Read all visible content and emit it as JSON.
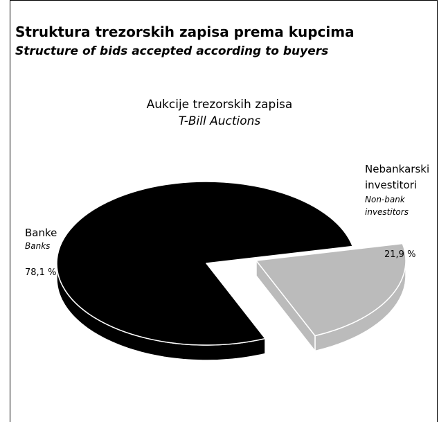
{
  "header": {
    "title": "Struktura trezorskih zapisa prema kupcima",
    "subtitle": "Structure of bids accepted according to buyers"
  },
  "chart_data": {
    "type": "pie",
    "title": "Aukcije trezorskih zapisa",
    "subtitle": "T-Bill Auctions",
    "slices": [
      {
        "label": "Banke",
        "label_en": "Banks",
        "value": 78.1,
        "value_text": "78,1 %",
        "color": "#000000",
        "exploded": false
      },
      {
        "label": "Nebankarski investitori",
        "label_en": "Non-bank investitors",
        "value": 21.9,
        "value_text": "21,9 %",
        "color": "#bbbbbb",
        "exploded": true
      }
    ]
  }
}
